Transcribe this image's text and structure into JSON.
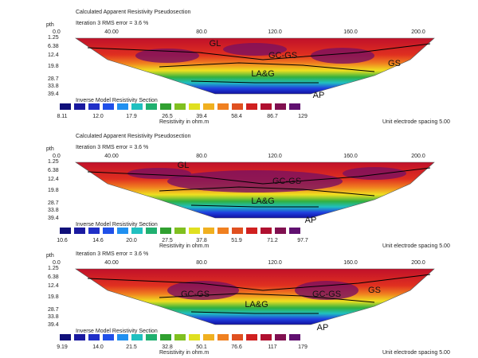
{
  "panels": [
    {
      "title": "Calculated Apparent Resistivity Pseudosection",
      "iteration": "Iteration 3 RMS error = 3.6 %",
      "depth_header": "pth",
      "x_labels": [
        "0.0",
        "40.00",
        "80.0",
        "120.0",
        "160.0",
        "200.0"
      ],
      "depth_labels": [
        "1.25",
        "6.38",
        "12.4",
        "19.8",
        "28.7",
        "33.8",
        "39.4"
      ],
      "legend_title": "Inverse Model Resistivity Section",
      "legend_values": [
        "8.11",
        "12.0",
        "17.9",
        "26.5",
        "39.4",
        "58.4",
        "86.7",
        "129"
      ],
      "legend_unit": "Resistivity in ohm.m",
      "spacing": "Unit electrode spacing 5.00",
      "annotations": [
        "GL",
        "GC-GS",
        "GS",
        "LA&G",
        "AP"
      ]
    },
    {
      "title": "Calculated Apparent Resistivity Pseudosection",
      "iteration": "Iteration 3 RMS error = 3.6 %",
      "depth_header": "pth",
      "x_labels": [
        "0.0",
        "40.00",
        "80.0",
        "120.0",
        "160.0",
        "200.0"
      ],
      "depth_labels": [
        "1.25",
        "6.38",
        "12.4",
        "19.8",
        "28.7",
        "33.8",
        "39.4"
      ],
      "legend_title": "Inverse Model Resistivity Section",
      "legend_values": [
        "10.6",
        "14.6",
        "20.0",
        "27.5",
        "37.8",
        "51.9",
        "71.2",
        "97.7"
      ],
      "legend_unit": "Resistivity in ohm.m",
      "spacing": "Unit electrode spacing 5.00",
      "annotations": [
        "GL",
        "GC-GS",
        "LA&G",
        "AP"
      ]
    },
    {
      "iteration": "Iteration 3 RMS error = 3.6 %",
      "depth_header": "pth",
      "x_labels": [
        "0.0",
        "40.00",
        "80.0",
        "120.0",
        "160.0",
        "200.0"
      ],
      "depth_labels": [
        "1.25",
        "6.38",
        "12.4",
        "19.8",
        "28.7",
        "33.8",
        "39.4"
      ],
      "legend_title": "Inverse Model Resistivity Section",
      "legend_values": [
        "9.19",
        "14.0",
        "21.5",
        "32.8",
        "50.1",
        "76.6",
        "117",
        "179"
      ],
      "legend_unit": "Resistivity in ohm.m",
      "spacing": "Unit electrode spacing 5.00",
      "annotations": [
        "GC-GS",
        "GC-GS",
        "GS",
        "LA&G",
        "AP"
      ]
    }
  ]
}
